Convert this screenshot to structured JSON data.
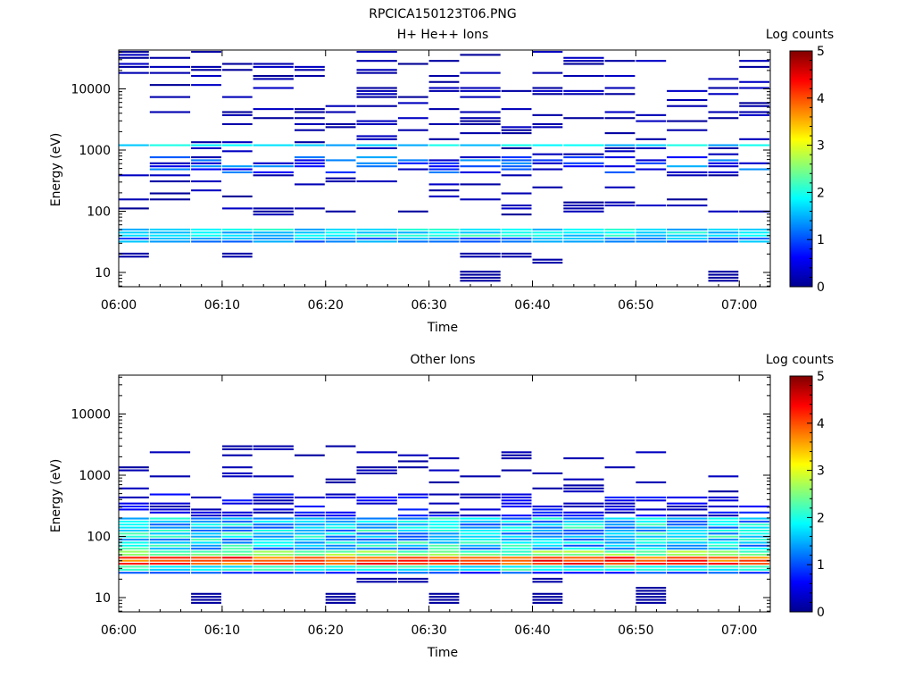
{
  "page_title": "RPCICA150123T06.PNG",
  "chart_data": [
    {
      "type": "heatmap",
      "title": "H+ He++ Ions",
      "xlabel": "Time",
      "ylabel": "Energy (eV)",
      "y_scale": "log",
      "ylim": [
        6,
        50000
      ],
      "xlim": [
        "06:00",
        "07:03"
      ],
      "x_ticks": [
        "06:00",
        "06:10",
        "06:20",
        "06:30",
        "06:40",
        "06:50",
        "07:00"
      ],
      "y_ticks": [
        "10",
        "100",
        "1000",
        "10000"
      ],
      "colorbar": {
        "label": "Log counts",
        "min": 0,
        "max": 5,
        "ticks": [
          "0",
          "1",
          "2",
          "3",
          "4",
          "5"
        ]
      },
      "grid": false,
      "time_bins_start": [
        "06:00",
        "06:03",
        "06:07",
        "06:10",
        "06:13",
        "06:17",
        "06:20",
        "06:23",
        "06:27",
        "06:30",
        "06:33",
        "06:37",
        "06:40",
        "06:43",
        "06:47",
        "06:50",
        "06:53",
        "06:57",
        "07:00"
      ],
      "features": [
        {
          "energy_eV": [
            1100,
            1300
          ],
          "log_counts": 1.6,
          "time": "all",
          "note": "persistent narrow band"
        },
        {
          "energy_eV": [
            400,
            800
          ],
          "log_counts": [
            0.3,
            2.0
          ],
          "time": "06:03-07:03"
        },
        {
          "energy_eV": [
            30,
            50
          ],
          "log_counts": [
            1.0,
            2.3
          ],
          "time": "all"
        },
        {
          "energy_eV": [
            8,
            12
          ],
          "log_counts": 0.2,
          "time": [
            "06:33",
            "06:57"
          ]
        },
        {
          "energy_eV": [
            80,
            40000
          ],
          "log_counts": [
            0.1,
            0.5
          ],
          "time": "all",
          "note": "sparse single-count streaks"
        }
      ]
    },
    {
      "type": "heatmap",
      "title": "Other Ions",
      "xlabel": "Time",
      "ylabel": "Energy (eV)",
      "y_scale": "log",
      "ylim": [
        6,
        50000
      ],
      "xlim": [
        "06:00",
        "07:03"
      ],
      "x_ticks": [
        "06:00",
        "06:10",
        "06:20",
        "06:30",
        "06:40",
        "06:50",
        "07:00"
      ],
      "y_ticks": [
        "10",
        "100",
        "1000",
        "10000"
      ],
      "colorbar": {
        "label": "Log counts",
        "min": 0,
        "max": 5,
        "ticks": [
          "0",
          "1",
          "2",
          "3",
          "4",
          "5"
        ]
      },
      "grid": false,
      "time_bins_start": [
        "06:00",
        "06:03",
        "06:07",
        "06:10",
        "06:13",
        "06:17",
        "06:20",
        "06:23",
        "06:27",
        "06:30",
        "06:33",
        "06:37",
        "06:40",
        "06:43",
        "06:47",
        "06:50",
        "06:53",
        "06:57",
        "07:00"
      ],
      "features": [
        {
          "energy_eV": [
            33,
            45
          ],
          "log_counts": [
            3.8,
            4.5
          ],
          "time": "all",
          "note": "intense band"
        },
        {
          "energy_eV": [
            45,
            200
          ],
          "log_counts": [
            1.0,
            2.2
          ],
          "time": "all"
        },
        {
          "energy_eV": [
            200,
            500
          ],
          "log_counts": [
            0.3,
            1.2
          ],
          "time": "all"
        },
        {
          "energy_eV": [
            23,
            33
          ],
          "log_counts": [
            1.3,
            2.2
          ],
          "time": "all"
        },
        {
          "energy_eV": [
            8,
            15
          ],
          "log_counts": 0.2,
          "time": [
            "06:07",
            "06:17",
            "06:40",
            "06:50"
          ]
        }
      ]
    }
  ]
}
